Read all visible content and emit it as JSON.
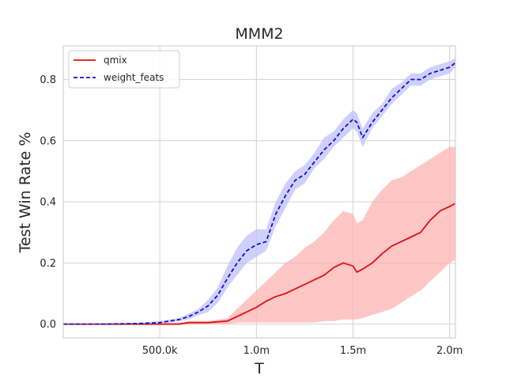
{
  "chart_data": {
    "type": "line",
    "title": "MMM2",
    "xlabel": "T",
    "ylabel": "Test Win Rate %",
    "xlim": [
      0,
      2030000
    ],
    "ylim": [
      -0.045,
      0.91
    ],
    "xticks": [
      500000,
      1000000,
      1500000,
      2000000
    ],
    "xtick_labels": [
      "500.0k",
      "1.0m",
      "1.5m",
      "2.0m"
    ],
    "yticks": [
      0.0,
      0.2,
      0.4,
      0.6,
      0.8
    ],
    "ytick_labels": [
      "0.0",
      "0.2",
      "0.4",
      "0.6",
      "0.8"
    ],
    "grid": true,
    "legend": "top-left",
    "series": [
      {
        "name": "qmix",
        "style": "solid",
        "color": "#dd1111",
        "band_color": "#ffb3b3",
        "x": [
          0,
          200000,
          400000,
          500000,
          600000,
          650000,
          750000,
          850000,
          900000,
          950000,
          1000000,
          1050000,
          1100000,
          1150000,
          1200000,
          1250000,
          1300000,
          1350000,
          1400000,
          1450000,
          1500000,
          1520000,
          1550000,
          1600000,
          1650000,
          1700000,
          1750000,
          1800000,
          1850000,
          1900000,
          1950000,
          2000000,
          2030000
        ],
        "y": [
          0.0,
          0.0,
          0.0,
          0.0,
          0.0,
          0.005,
          0.005,
          0.01,
          0.025,
          0.04,
          0.055,
          0.075,
          0.09,
          0.1,
          0.115,
          0.13,
          0.145,
          0.16,
          0.185,
          0.2,
          0.19,
          0.17,
          0.18,
          0.2,
          0.23,
          0.255,
          0.27,
          0.285,
          0.3,
          0.34,
          0.37,
          0.385,
          0.395
        ],
        "lower": [
          0.0,
          0.0,
          0.0,
          0.0,
          0.0,
          0.0,
          0.0,
          0.0,
          0.005,
          0.005,
          0.005,
          0.005,
          0.005,
          0.005,
          0.005,
          0.005,
          0.005,
          0.01,
          0.01,
          0.015,
          0.015,
          0.015,
          0.02,
          0.03,
          0.04,
          0.05,
          0.07,
          0.09,
          0.11,
          0.14,
          0.17,
          0.2,
          0.21
        ],
        "upper": [
          0.0,
          0.0,
          0.0,
          0.005,
          0.005,
          0.01,
          0.01,
          0.02,
          0.05,
          0.08,
          0.11,
          0.14,
          0.17,
          0.2,
          0.22,
          0.25,
          0.27,
          0.3,
          0.34,
          0.37,
          0.36,
          0.33,
          0.34,
          0.4,
          0.44,
          0.47,
          0.48,
          0.5,
          0.52,
          0.54,
          0.56,
          0.58,
          0.58
        ]
      },
      {
        "name": "weight_feats",
        "style": "dashed",
        "color": "#1111cc",
        "band_color": "#c0c0ff",
        "x": [
          0,
          200000,
          400000,
          500000,
          550000,
          600000,
          650000,
          700000,
          750000,
          800000,
          850000,
          900000,
          950000,
          1000000,
          1050000,
          1100000,
          1150000,
          1200000,
          1250000,
          1300000,
          1350000,
          1400000,
          1450000,
          1500000,
          1520000,
          1550000,
          1600000,
          1650000,
          1700000,
          1750000,
          1800000,
          1850000,
          1900000,
          1950000,
          2000000,
          2030000
        ],
        "y": [
          0.0,
          0.0,
          0.002,
          0.005,
          0.01,
          0.015,
          0.025,
          0.04,
          0.06,
          0.095,
          0.15,
          0.2,
          0.24,
          0.26,
          0.27,
          0.36,
          0.42,
          0.47,
          0.49,
          0.53,
          0.57,
          0.6,
          0.64,
          0.67,
          0.66,
          0.61,
          0.66,
          0.7,
          0.74,
          0.77,
          0.8,
          0.8,
          0.82,
          0.83,
          0.84,
          0.855
        ],
        "lower": [
          0.0,
          0.0,
          0.0,
          0.0,
          0.005,
          0.01,
          0.015,
          0.03,
          0.04,
          0.07,
          0.12,
          0.16,
          0.2,
          0.22,
          0.24,
          0.32,
          0.38,
          0.44,
          0.46,
          0.51,
          0.54,
          0.58,
          0.61,
          0.64,
          0.63,
          0.58,
          0.64,
          0.68,
          0.72,
          0.75,
          0.78,
          0.78,
          0.8,
          0.81,
          0.82,
          0.84
        ],
        "upper": [
          0.0,
          0.002,
          0.005,
          0.01,
          0.015,
          0.02,
          0.035,
          0.05,
          0.08,
          0.12,
          0.19,
          0.25,
          0.29,
          0.31,
          0.31,
          0.4,
          0.46,
          0.5,
          0.52,
          0.56,
          0.61,
          0.63,
          0.67,
          0.7,
          0.69,
          0.64,
          0.69,
          0.72,
          0.77,
          0.79,
          0.82,
          0.82,
          0.84,
          0.85,
          0.86,
          0.87
        ]
      }
    ]
  }
}
